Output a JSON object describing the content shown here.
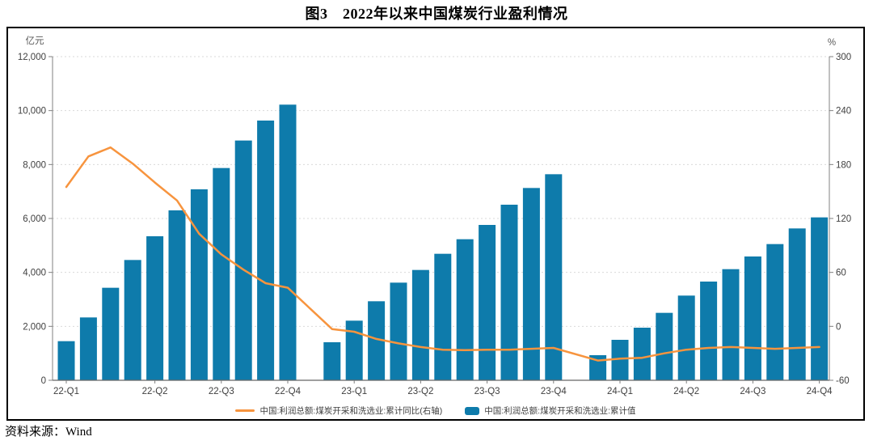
{
  "title": "图3　2022年以来中国煤炭行业盈利情况",
  "source_label": "资料来源：Wind",
  "chart_data": {
    "type": "bar+line",
    "unit_left": "亿元",
    "unit_right": "%",
    "left_axis": {
      "min": 0,
      "max": 12000,
      "ticks": [
        0,
        2000,
        4000,
        6000,
        8000,
        10000,
        12000
      ],
      "grid": "dashed"
    },
    "right_axis": {
      "min": -60,
      "max": 300,
      "ticks": [
        -60,
        0,
        60,
        120,
        180,
        240,
        300
      ]
    },
    "x_ticks": [
      {
        "label": "22-Q1",
        "slot": 0
      },
      {
        "label": "22-Q2",
        "slot": 4
      },
      {
        "label": "22-Q3",
        "slot": 7
      },
      {
        "label": "22-Q4",
        "slot": 10
      },
      {
        "label": "23-Q1",
        "slot": 13
      },
      {
        "label": "23-Q2",
        "slot": 16
      },
      {
        "label": "23-Q3",
        "slot": 19
      },
      {
        "label": "23-Q4",
        "slot": 22
      },
      {
        "label": "24-Q1",
        "slot": 25
      },
      {
        "label": "24-Q2",
        "slot": 28
      },
      {
        "label": "24-Q3",
        "slot": 31
      },
      {
        "label": "24-Q4",
        "slot": 34
      }
    ],
    "months_per_year": [
      "02",
      "03",
      "04",
      "05",
      "06",
      "07",
      "08",
      "09",
      "10",
      "11",
      "12"
    ],
    "bars": {
      "label": "中国:利润总额:煤炭开采和洗选业:累计值",
      "color": "#0e7bab",
      "axis": "left",
      "values_by_year": {
        "2022": [
          1450,
          2330,
          3430,
          4460,
          5340,
          6300,
          7080,
          7870,
          8890,
          9630,
          10220
        ],
        "2023": [
          1410,
          2210,
          2930,
          3620,
          4090,
          4690,
          5230,
          5760,
          6510,
          7130,
          7640
        ],
        "2024": [
          930,
          1500,
          1950,
          2500,
          3140,
          3660,
          4120,
          4590,
          5050,
          5630,
          6040
        ]
      }
    },
    "line": {
      "label": "中国:利润总额:煤炭开采和洗选业:累计同比(右轴)",
      "color": "#f7943e",
      "axis": "right",
      "values_by_year": {
        "2022": [
          155,
          189,
          199,
          181,
          160,
          140,
          103,
          80,
          63,
          48,
          43
        ],
        "2023": [
          -3,
          -6,
          -14,
          -19,
          -23,
          -26,
          -26.5,
          -26,
          -26,
          -25,
          -24
        ],
        "2024": [
          -38,
          -36,
          -35,
          -30,
          -26,
          -24,
          -23,
          -24,
          -25,
          -24,
          -23
        ]
      }
    },
    "colors": {
      "grid": "#d9d9d9",
      "axis": "#808080",
      "tick_label": "#404040",
      "unit_label": "#595959"
    }
  }
}
